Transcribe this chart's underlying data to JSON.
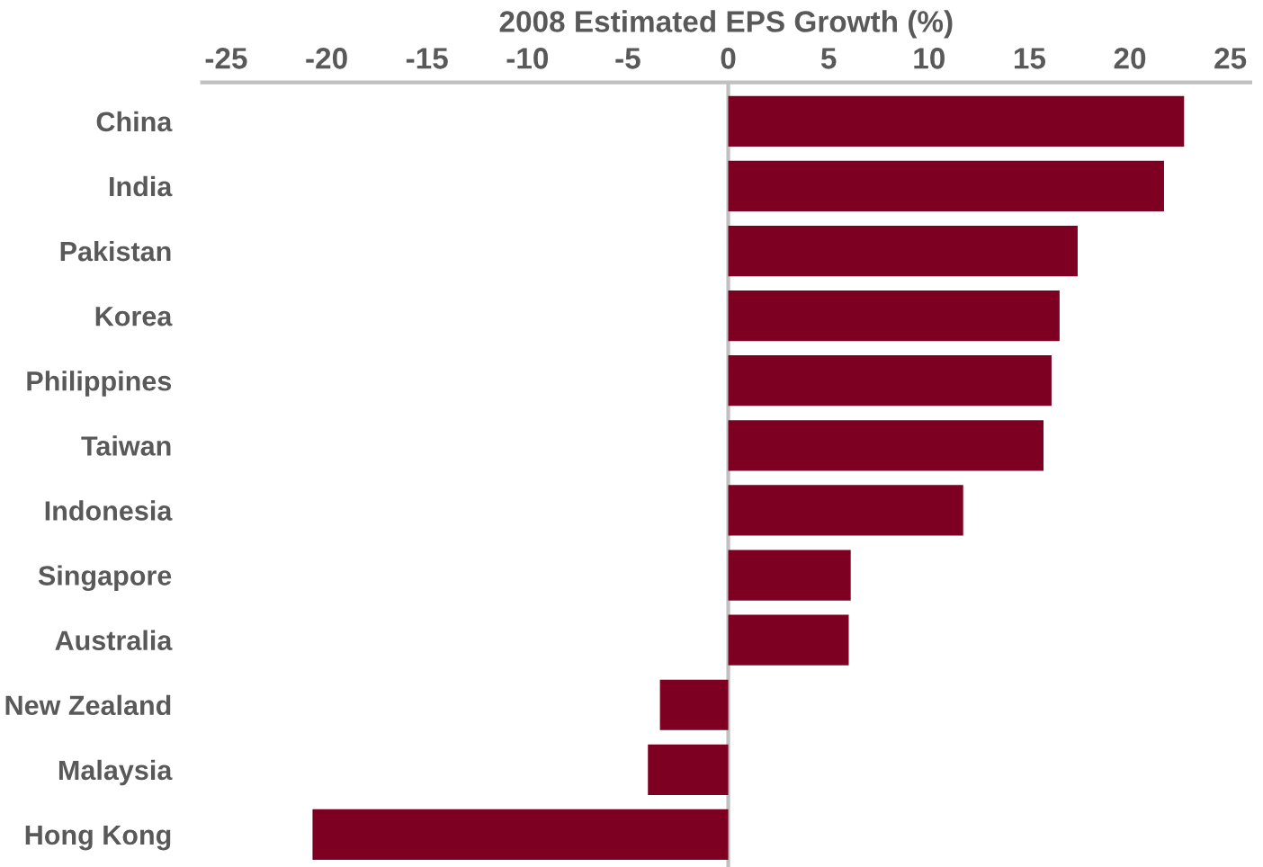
{
  "chart_data": {
    "type": "bar",
    "orientation": "horizontal",
    "xlabel": "2008 Estimated EPS Growth (%)",
    "categories": [
      "China",
      "India",
      "Pakistan",
      "Korea",
      "Philippines",
      "Taiwan",
      "Indonesia",
      "Singapore",
      "Australia",
      "New Zealand",
      "Malaysia",
      "Hong Kong"
    ],
    "values": [
      22.7,
      21.7,
      17.4,
      16.5,
      16.1,
      15.7,
      11.7,
      6.1,
      6.0,
      -3.4,
      -4.0,
      -20.7
    ],
    "color": "#7d0022",
    "xlim": [
      -26.2,
      26
    ],
    "xticks": [
      -25,
      -20,
      -15,
      -10,
      -5,
      0,
      5,
      10,
      15,
      20,
      25
    ],
    "ref_lines": [
      {
        "axis": "x",
        "value": 0,
        "color": "#c0c0c0"
      }
    ],
    "grid": false,
    "legend": false
  }
}
